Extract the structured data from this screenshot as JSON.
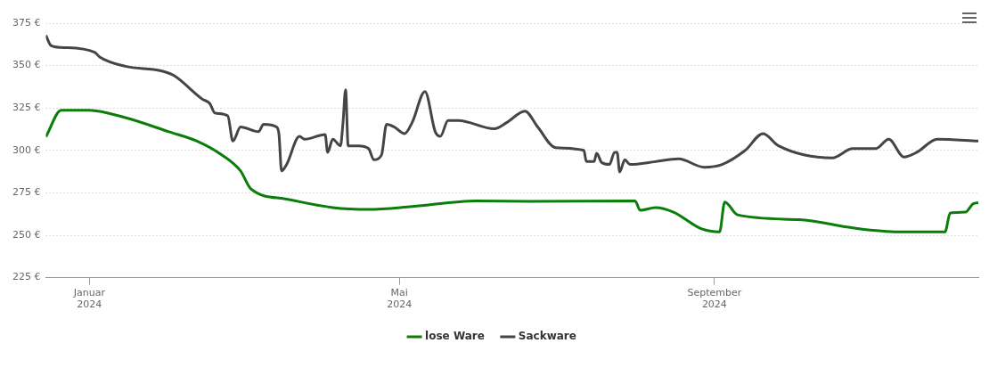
{
  "chart_data": {
    "type": "line",
    "series": [
      {
        "name": "lose Ware",
        "color": "#0a7d0a",
        "x": [
          -17,
          -11,
          0,
          14,
          31,
          42,
          52,
          59,
          63,
          77,
          95,
          109,
          126,
          151,
          172,
          213,
          215,
          221,
          228,
          239,
          246,
          248,
          253,
          277,
          298,
          316,
          334,
          336,
          342,
          345,
          347
        ],
        "values": [
          308,
          323.7,
          323.7,
          319.3,
          311,
          305.5,
          297,
          287.9,
          277.4,
          271.3,
          266.3,
          265.2,
          266.9,
          270.2,
          270,
          270.2,
          264.7,
          266.3,
          263.6,
          253.7,
          252,
          269.6,
          262,
          259.2,
          254.3,
          252,
          252,
          263,
          263.6,
          268.6,
          269.2
        ]
      },
      {
        "name": "Sackware",
        "color": "#454545",
        "x": [
          -17,
          -15,
          -11,
          2,
          4,
          14,
          28,
          33,
          44,
          47,
          49,
          54,
          56,
          59,
          66,
          68,
          73,
          74,
          75,
          77,
          82,
          84,
          92,
          93,
          95,
          98,
          99,
          100,
          101,
          102,
          105,
          109,
          111,
          114,
          116,
          119,
          123,
          126,
          131,
          135,
          137,
          140,
          144,
          158,
          163,
          170,
          175,
          182,
          193,
          194,
          197,
          198,
          200,
          203,
          205,
          206,
          207,
          209,
          211,
          221,
          230,
          240,
          247,
          256,
          263,
          269,
          290,
          298,
          307,
          312,
          318,
          323,
          331,
          347
        ],
        "values": [
          367.8,
          361.8,
          360.7,
          357.9,
          355.1,
          349.6,
          346.9,
          344.1,
          330.3,
          327.6,
          322,
          320.4,
          305.5,
          313.8,
          311,
          315.4,
          313.8,
          309.4,
          287.9,
          291.8,
          308.3,
          306.6,
          309.4,
          298.9,
          306.6,
          302.7,
          316.5,
          335.8,
          302.7,
          302.7,
          302.7,
          301.1,
          294.5,
          297.2,
          315.4,
          313.8,
          309.9,
          316.5,
          334.7,
          311,
          308.3,
          317.6,
          317.6,
          312.7,
          316.5,
          323.2,
          313.8,
          301.6,
          300,
          293.4,
          293.4,
          298.3,
          292.8,
          291.7,
          298.9,
          298.9,
          287.3,
          294.5,
          291.7,
          293.4,
          295,
          290.1,
          291.7,
          300,
          309.9,
          302.7,
          295.6,
          301.1,
          301.1,
          306.6,
          296.1,
          298.9,
          306.6,
          305.5
        ]
      }
    ],
    "xlim": [
      -17,
      347
    ],
    "xticks": [
      {
        "value": 0,
        "label": "Januar 2024"
      },
      {
        "value": 121,
        "label": "Mai 2024"
      },
      {
        "value": 244,
        "label": "September 2024"
      }
    ],
    "ylim": [
      225,
      375
    ],
    "yticks": [
      {
        "value": 225,
        "label": "225 €"
      },
      {
        "value": 250,
        "label": "250 €"
      },
      {
        "value": 275,
        "label": "275 €"
      },
      {
        "value": 300,
        "label": "300 €"
      },
      {
        "value": 325,
        "label": "325 €"
      },
      {
        "value": 350,
        "label": "350 €"
      },
      {
        "value": 375,
        "label": "375 €"
      }
    ],
    "grid": true,
    "legend": "bottom"
  }
}
